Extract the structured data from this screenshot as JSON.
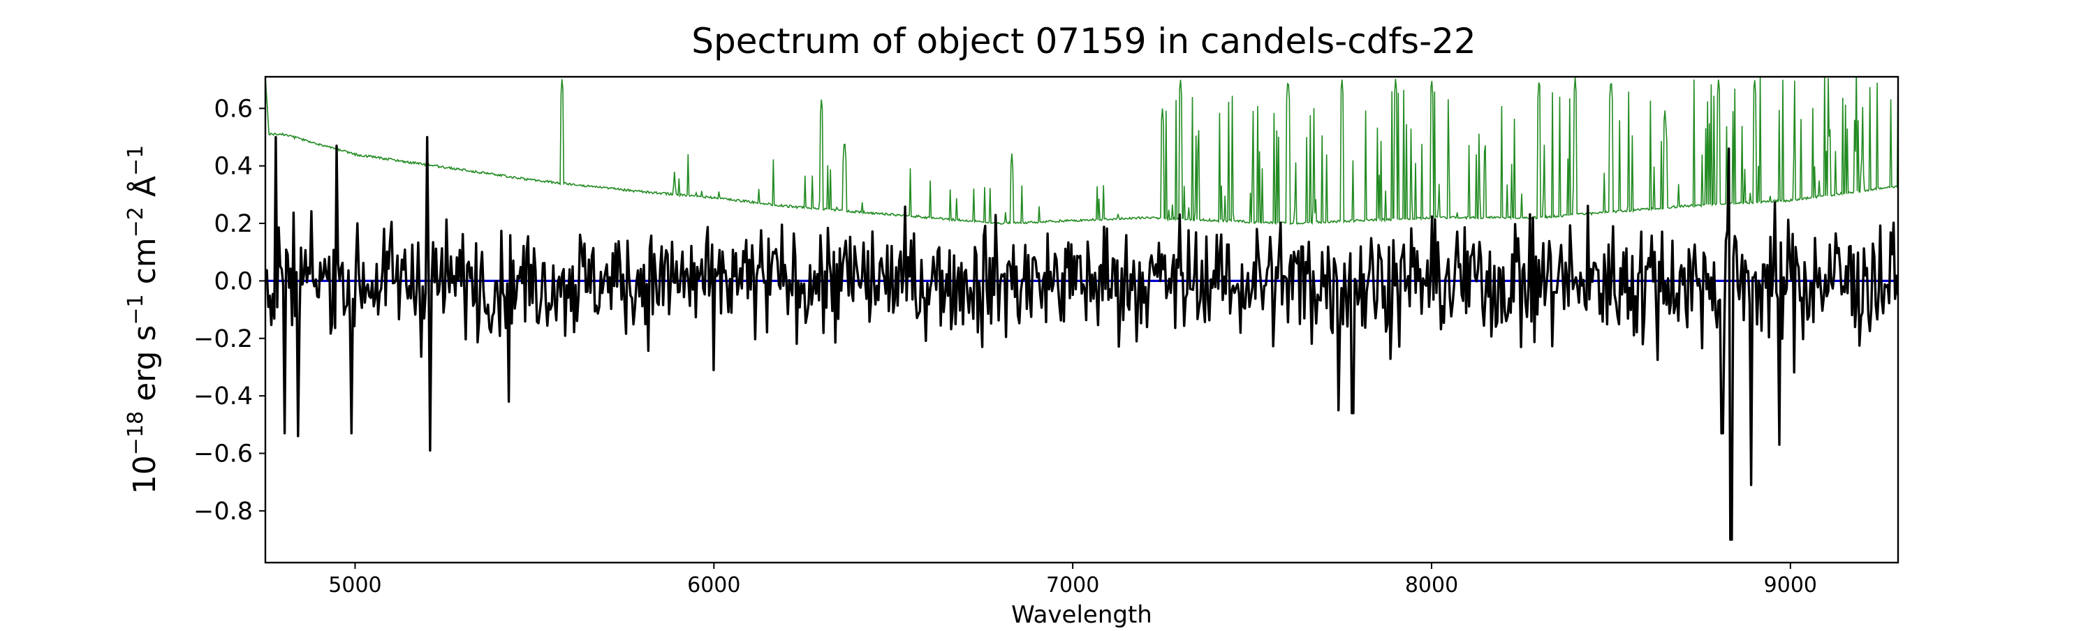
{
  "chart_data": {
    "type": "line",
    "title": "Spectrum of object 07159 in candels-cdfs-22",
    "xlabel": "Wavelength",
    "ylabel_parts": {
      "base": "10",
      "exp_main": "−18",
      "unit1": " erg s",
      "exp1": "−1",
      "unit2": " cm",
      "exp2": "−2",
      "unit3": " Å",
      "exp3": "−1"
    },
    "xlim": [
      4750,
      9300
    ],
    "ylim": [
      -0.98,
      0.71
    ],
    "x_ticks": [
      5000,
      6000,
      7000,
      8000,
      9000
    ],
    "x_tick_labels": [
      "5000",
      "6000",
      "7000",
      "8000",
      "9000"
    ],
    "y_ticks": [
      -0.8,
      -0.6,
      -0.4,
      -0.2,
      0.0,
      0.2,
      0.4,
      0.6
    ],
    "y_tick_labels": [
      "−0.8",
      "−0.6",
      "−0.4",
      "−0.2",
      "0.0",
      "0.2",
      "0.4",
      "0.6"
    ],
    "grid": false,
    "colors": {
      "flux": "#000000",
      "error": "#228b22",
      "zero": "#0000cd"
    },
    "series": [
      {
        "key": "flux",
        "description": "black noisy flux spectrum",
        "x_start": 4750,
        "x_end": 9300,
        "n_points": 1100,
        "noise_sigma_start": 0.13,
        "noise_sigma_end": 0.16,
        "features": [
          {
            "x": 4780,
            "y": 0.5
          },
          {
            "x": 4805,
            "y": -0.53
          },
          {
            "x": 4840,
            "y": -0.54
          },
          {
            "x": 4950,
            "y": 0.47
          },
          {
            "x": 4990,
            "y": -0.53
          },
          {
            "x": 5200,
            "y": 0.5
          },
          {
            "x": 5210,
            "y": -0.59
          },
          {
            "x": 5430,
            "y": -0.42
          },
          {
            "x": 6000,
            "y": -0.31
          },
          {
            "x": 7740,
            "y": -0.45
          },
          {
            "x": 7780,
            "y": -0.46
          },
          {
            "x": 8830,
            "y": 0.46
          },
          {
            "x": 8835,
            "y": -0.9
          },
          {
            "x": 8890,
            "y": -0.71
          },
          {
            "x": 8970,
            "y": -0.57
          },
          {
            "x": 8810,
            "y": -0.53
          }
        ]
      },
      {
        "key": "error",
        "description": "green uncertainty spectrum",
        "continuum": [
          [
            4750,
            0.71
          ],
          [
            4760,
            0.51
          ],
          [
            4800,
            0.51
          ],
          [
            5000,
            0.44
          ],
          [
            5500,
            0.35
          ],
          [
            5800,
            0.31
          ],
          [
            6000,
            0.29
          ],
          [
            6200,
            0.26
          ],
          [
            6500,
            0.23
          ],
          [
            6800,
            0.2
          ],
          [
            7200,
            0.22
          ],
          [
            7600,
            0.2
          ],
          [
            8000,
            0.22
          ],
          [
            8300,
            0.22
          ],
          [
            8500,
            0.24
          ],
          [
            8700,
            0.26
          ],
          [
            9000,
            0.28
          ],
          [
            9300,
            0.33
          ]
        ],
        "emission_features": [
          {
            "x": 5577,
            "y": 0.71
          },
          {
            "x": 5890,
            "y": 0.38
          },
          {
            "x": 6300,
            "y": 0.64
          },
          {
            "x": 6364,
            "y": 0.5
          },
          {
            "x": 6830,
            "y": 0.45
          },
          {
            "x": 7250,
            "y": 0.6
          },
          {
            "x": 7300,
            "y": 0.71
          },
          {
            "x": 7600,
            "y": 0.71
          },
          {
            "x": 7750,
            "y": 0.71
          },
          {
            "x": 7900,
            "y": 0.71
          },
          {
            "x": 8000,
            "y": 0.71
          },
          {
            "x": 8300,
            "y": 0.71
          },
          {
            "x": 8400,
            "y": 0.71
          },
          {
            "x": 8500,
            "y": 0.71
          },
          {
            "x": 8650,
            "y": 0.6
          },
          {
            "x": 8800,
            "y": 0.71
          },
          {
            "x": 8900,
            "y": 0.71
          },
          {
            "x": 9200,
            "y": 0.45
          }
        ]
      },
      {
        "key": "zero",
        "description": "blue zero level",
        "points": [
          [
            4750,
            0.0
          ],
          [
            9300,
            0.0
          ]
        ]
      }
    ]
  }
}
